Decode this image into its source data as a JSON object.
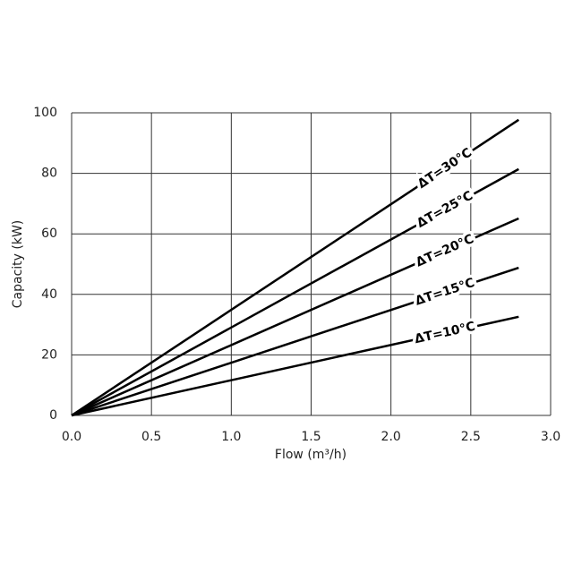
{
  "chart_data": {
    "type": "line",
    "x_label": "Flow (m³/h)",
    "y_label": "Capacity (kW)",
    "x": [
      0,
      2.8
    ],
    "series": [
      {
        "name": "ΔT=30°C",
        "color": "#000000",
        "values": [
          0,
          97.7
        ]
      },
      {
        "name": "ΔT=25°C",
        "color": "#000000",
        "values": [
          0,
          81.4
        ]
      },
      {
        "name": "ΔT=20°C",
        "color": "#000000",
        "values": [
          0,
          65.1
        ]
      },
      {
        "name": "ΔT=15°C",
        "color": "#000000",
        "values": [
          0,
          48.8
        ]
      },
      {
        "name": "ΔT=10°C",
        "color": "#000000",
        "values": [
          0,
          32.6
        ]
      }
    ],
    "xlim": [
      0,
      3
    ],
    "ylim": [
      0,
      100
    ],
    "xticks": [
      {
        "value": 0,
        "label": "0.0"
      },
      0.5,
      {
        "value": 1,
        "label": "1.0"
      },
      1.5,
      {
        "value": 2,
        "label": "2.0"
      },
      2.5,
      {
        "value": 3,
        "label": "3.0"
      }
    ],
    "yticks": [
      0,
      20,
      40,
      60,
      80,
      100
    ],
    "grid": true
  }
}
